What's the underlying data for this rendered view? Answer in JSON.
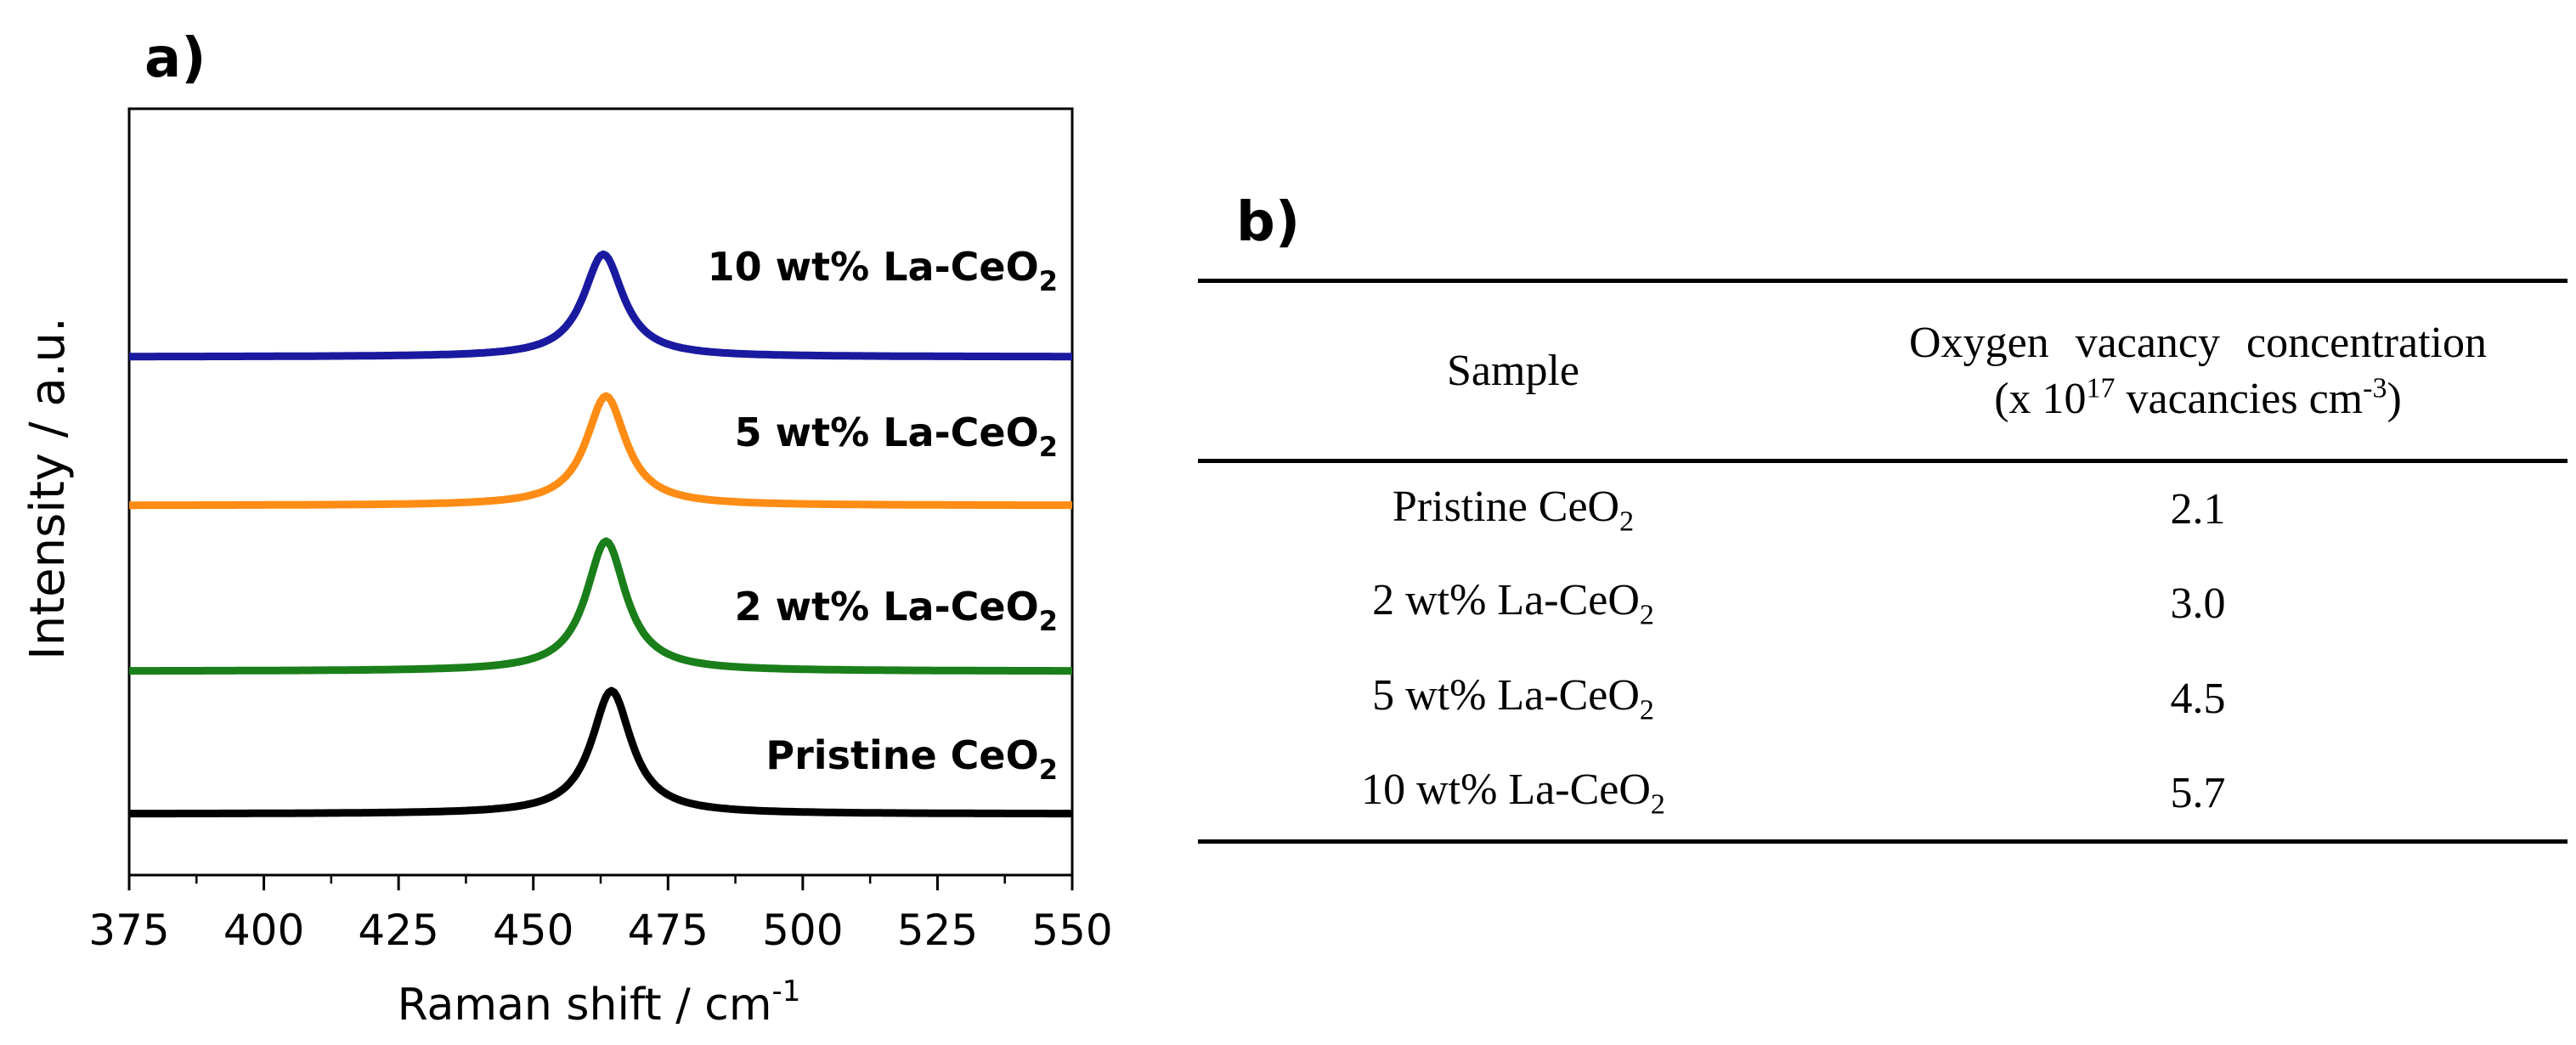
{
  "chart_data": {
    "type": "line",
    "panel_label": "a)",
    "xlabel_main": "Raman shift / cm",
    "xlabel_sup": "-1",
    "ylabel": "Intensity / a.u.",
    "xlim": [
      375,
      550
    ],
    "x_ticks": [
      "375",
      "400",
      "425",
      "450",
      "475",
      "500",
      "525",
      "550"
    ],
    "y_ticks": [],
    "grid": false,
    "series": [
      {
        "name": "Pristine CeO2",
        "label_main": "Pristine CeO",
        "label_sub": "2",
        "color": "#000000",
        "peak_center": 464.5,
        "peak_fwhm": 9,
        "baseline": 0.0,
        "peak_height": 0.9
      },
      {
        "name": "2 wt% La-CeO2",
        "label_main": "2 wt% La-CeO",
        "label_sub": "2",
        "color": "#1a7f1a",
        "peak_center": 463.5,
        "peak_fwhm": 9,
        "baseline": 1.0,
        "peak_height": 0.95
      },
      {
        "name": "5 wt% La-CeO2",
        "label_main": "5 wt% La-CeO",
        "label_sub": "2",
        "color": "#ff8c14",
        "peak_center": 463.5,
        "peak_fwhm": 9,
        "baseline": 2.0,
        "peak_height": 0.8
      },
      {
        "name": "10 wt% La-CeO2",
        "label_main": "10 wt% La-CeO",
        "label_sub": "2",
        "color": "#1a1aa0",
        "peak_center": 463.0,
        "peak_fwhm": 9,
        "baseline": 3.0,
        "peak_height": 0.75
      }
    ]
  },
  "table": {
    "panel_label": "b)",
    "header_sample": "Sample",
    "header_line1": "Oxygen vacancy concentration",
    "header_line2_prefix": "(x 10",
    "header_line2_exp": "17",
    "header_line2_mid": " vacancies cm",
    "header_line2_exp2": "-3",
    "header_line2_suffix": ")",
    "rows": [
      {
        "sample_main": "Pristine CeO",
        "sample_sub": "2",
        "value": "2.1"
      },
      {
        "sample_main": "2 wt% La-CeO",
        "sample_sub": "2",
        "value": "3.0"
      },
      {
        "sample_main": "5 wt% La-CeO",
        "sample_sub": "2",
        "value": "4.5"
      },
      {
        "sample_main": "10 wt% La-CeO",
        "sample_sub": "2",
        "value": "5.7"
      }
    ]
  }
}
